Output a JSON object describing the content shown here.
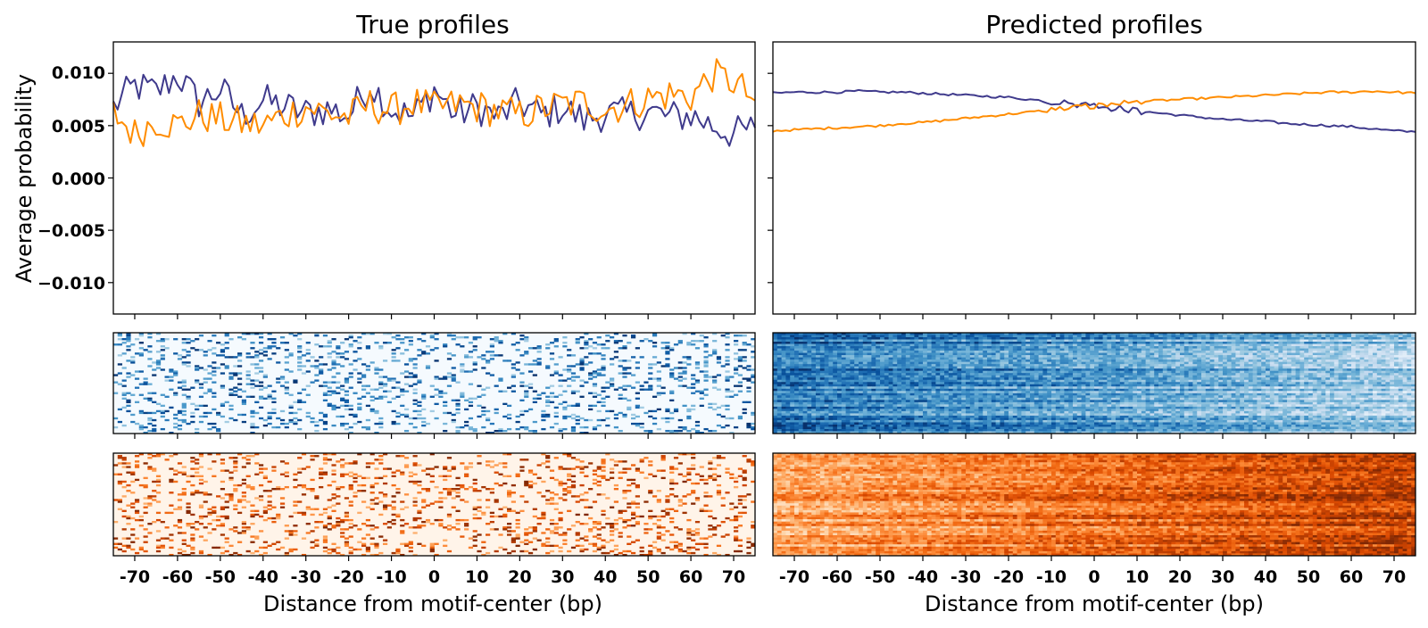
{
  "chart_data": [
    {
      "type": "line",
      "title": "True profiles",
      "xlabel": "",
      "ylabel": "Average probability",
      "xlim": [
        -75,
        75
      ],
      "ylim": [
        -0.013,
        0.013
      ],
      "yticks": [
        "0.010",
        "0.005",
        "0.000",
        "−0.005",
        "−0.010"
      ],
      "series": [
        {
          "color": "#3f3a8c",
          "x": [
            -75,
            -70,
            -65,
            -60,
            -55,
            -50,
            -45,
            -40,
            -35,
            -30,
            -25,
            -20,
            -15,
            -10,
            -5,
            0,
            5,
            10,
            15,
            20,
            25,
            30,
            35,
            40,
            45,
            50,
            55,
            60,
            65,
            70,
            75
          ],
          "values": [
            0.0068,
            0.0088,
            0.0082,
            0.0098,
            0.0072,
            0.0085,
            0.006,
            0.0074,
            0.0068,
            0.0062,
            0.0066,
            0.006,
            0.009,
            0.0066,
            0.0058,
            0.0085,
            0.006,
            0.0068,
            0.0058,
            0.0072,
            0.006,
            0.0068,
            0.0055,
            0.0062,
            0.006,
            0.0064,
            0.0058,
            0.006,
            0.005,
            0.0042,
            0.0048
          ]
        },
        {
          "color": "#ff8c00",
          "x": [
            -75,
            -70,
            -65,
            -60,
            -55,
            -50,
            -45,
            -40,
            -35,
            -30,
            -25,
            -20,
            -15,
            -10,
            -5,
            0,
            5,
            10,
            15,
            20,
            25,
            30,
            35,
            40,
            45,
            50,
            55,
            60,
            65,
            70,
            75
          ],
          "values": [
            0.0062,
            0.0042,
            0.0055,
            0.005,
            0.006,
            0.0056,
            0.0052,
            0.005,
            0.006,
            0.0068,
            0.0062,
            0.0058,
            0.007,
            0.0064,
            0.0072,
            0.0066,
            0.007,
            0.0068,
            0.0064,
            0.006,
            0.0066,
            0.007,
            0.0072,
            0.0066,
            0.007,
            0.0076,
            0.008,
            0.0078,
            0.0098,
            0.0092,
            0.0074
          ]
        }
      ]
    },
    {
      "type": "line",
      "title": "Predicted profiles",
      "xlabel": "",
      "ylabel": "",
      "xlim": [
        -75,
        75
      ],
      "ylim": [
        -0.013,
        0.013
      ],
      "series": [
        {
          "color": "#3f3a8c",
          "x": [
            -75,
            -70,
            -65,
            -60,
            -55,
            -50,
            -45,
            -40,
            -35,
            -30,
            -25,
            -20,
            -15,
            -10,
            -5,
            0,
            5,
            10,
            15,
            20,
            25,
            30,
            35,
            40,
            45,
            50,
            55,
            60,
            65,
            70,
            75
          ],
          "values": [
            0.0081,
            0.0082,
            0.0082,
            0.0082,
            0.0083,
            0.0082,
            0.0082,
            0.0081,
            0.008,
            0.0079,
            0.0078,
            0.0077,
            0.0075,
            0.0073,
            0.0071,
            0.007,
            0.0067,
            0.0064,
            0.0062,
            0.006,
            0.0058,
            0.0056,
            0.0055,
            0.0054,
            0.0052,
            0.0051,
            0.005,
            0.0049,
            0.0047,
            0.0045,
            0.0044
          ]
        },
        {
          "color": "#ff8c00",
          "x": [
            -75,
            -70,
            -65,
            -60,
            -55,
            -50,
            -45,
            -40,
            -35,
            -30,
            -25,
            -20,
            -15,
            -10,
            -5,
            0,
            5,
            10,
            15,
            20,
            25,
            30,
            35,
            40,
            45,
            50,
            55,
            60,
            65,
            70,
            75
          ],
          "values": [
            0.0045,
            0.0046,
            0.0047,
            0.0048,
            0.0049,
            0.005,
            0.0052,
            0.0053,
            0.0055,
            0.0057,
            0.0059,
            0.0061,
            0.0063,
            0.0065,
            0.0067,
            0.0069,
            0.0071,
            0.0073,
            0.0074,
            0.0075,
            0.0076,
            0.0077,
            0.0078,
            0.0079,
            0.008,
            0.0081,
            0.0082,
            0.0082,
            0.0083,
            0.0082,
            0.0081
          ]
        }
      ]
    },
    {
      "type": "heatmap",
      "colormap": "Blues",
      "xlim": [
        -75,
        75
      ],
      "pattern": "sparse dark dashes on pale background",
      "density": [
        0.15,
        0.15,
        0.15
      ]
    },
    {
      "type": "heatmap",
      "colormap": "Blues",
      "xlim": [
        -75,
        75
      ],
      "pattern": "dense, darker on left, lighter on right",
      "density": [
        0.75,
        0.6,
        0.35
      ]
    },
    {
      "type": "heatmap",
      "colormap": "Oranges",
      "xlim": [
        -75,
        75
      ],
      "xlabel": "Distance from motif-center (bp)",
      "pattern": "sparse dark dashes on pale background",
      "density": [
        0.18,
        0.18,
        0.18
      ]
    },
    {
      "type": "heatmap",
      "colormap": "Oranges",
      "xlim": [
        -75,
        75
      ],
      "xlabel": "Distance from motif-center (bp)",
      "pattern": "dense, lighter on left, darker on right",
      "density": [
        0.4,
        0.6,
        0.8
      ]
    }
  ],
  "axis": {
    "xticks": [
      "-70",
      "-60",
      "-50",
      "-40",
      "-30",
      "-20",
      "-10",
      "0",
      "10",
      "20",
      "30",
      "40",
      "50",
      "60",
      "70"
    ],
    "xtick_values": [
      -70,
      -60,
      -50,
      -40,
      -30,
      -20,
      -10,
      0,
      10,
      20,
      30,
      40,
      50,
      60,
      70
    ]
  },
  "colors": {
    "series_blue": "#3f3a8c",
    "series_orange": "#ff8c00"
  }
}
